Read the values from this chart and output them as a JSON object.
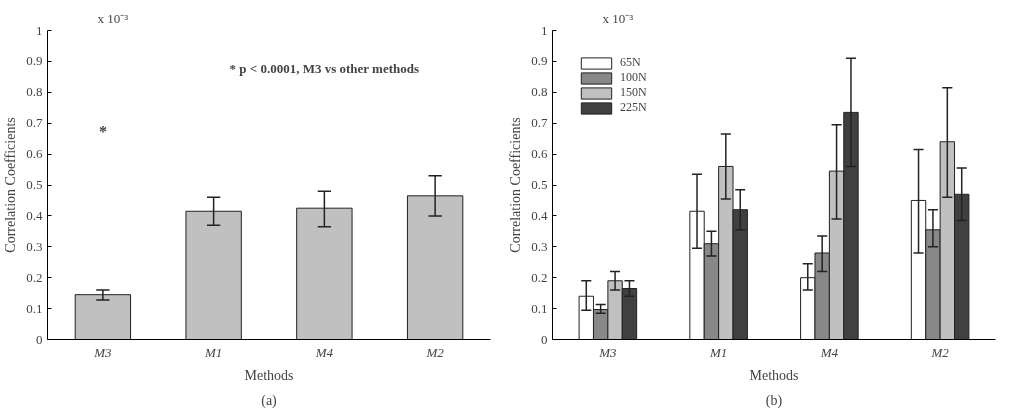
{
  "chart_data": [
    {
      "type": "bar",
      "categories": [
        "M3",
        "M1",
        "M4",
        "M2"
      ],
      "xlabel": "Methods",
      "ylabel": "Correlation Coefficients",
      "series": [
        {
          "color": "#c0c0c0",
          "values": [
            0.145,
            0.415,
            0.425,
            0.465
          ],
          "errors": [
            [
              0.128,
              0.16
            ],
            [
              0.37,
              0.46
            ],
            [
              0.365,
              0.48
            ],
            [
              0.4,
              0.53
            ]
          ]
        }
      ],
      "ylim": [
        0,
        1
      ],
      "yticks": [
        0,
        0.1,
        0.2,
        0.3,
        0.4,
        0.5,
        0.6,
        0.7,
        0.8,
        0.9,
        1
      ],
      "grid": false,
      "legend": false,
      "annotations": [
        "x 10⁻³",
        "(a)",
        "* p < 0.0001, M3 vs other methods",
        "*"
      ]
    },
    {
      "type": "bar",
      "categories": [
        "M3",
        "M1",
        "M4",
        "M2"
      ],
      "xlabel": "Methods",
      "ylabel": "Correlation Coefficients",
      "series": [
        {
          "name": "65N",
          "color": "#ffffff",
          "values": [
            0.14,
            0.415,
            0.2,
            0.45
          ],
          "errors": [
            [
              0.095,
              0.19
            ],
            [
              0.295,
              0.535
            ],
            [
              0.16,
              0.245
            ],
            [
              0.28,
              0.615
            ]
          ]
        },
        {
          "name": "100N",
          "color": "#888888",
          "values": [
            0.097,
            0.31,
            0.28,
            0.355
          ],
          "errors": [
            [
              0.085,
              0.113
            ],
            [
              0.27,
              0.35
            ],
            [
              0.22,
              0.335
            ],
            [
              0.3,
              0.42
            ]
          ]
        },
        {
          "name": "150N",
          "color": "#c0c0c0",
          "values": [
            0.19,
            0.56,
            0.545,
            0.64
          ],
          "errors": [
            [
              0.16,
              0.22
            ],
            [
              0.455,
              0.665
            ],
            [
              0.39,
              0.695
            ],
            [
              0.46,
              0.815
            ]
          ]
        },
        {
          "name": "225N",
          "color": "#404040",
          "values": [
            0.165,
            0.42,
            0.735,
            0.47
          ],
          "errors": [
            [
              0.14,
              0.19
            ],
            [
              0.355,
              0.485
            ],
            [
              0.56,
              0.91
            ],
            [
              0.385,
              0.555
            ]
          ]
        }
      ],
      "ylim": [
        0,
        1
      ],
      "yticks": [
        0,
        0.1,
        0.2,
        0.3,
        0.4,
        0.5,
        0.6,
        0.7,
        0.8,
        0.9,
        1
      ],
      "grid": false,
      "legend": "top left",
      "annotations": [
        "x 10⁻³",
        "(b)"
      ]
    }
  ]
}
